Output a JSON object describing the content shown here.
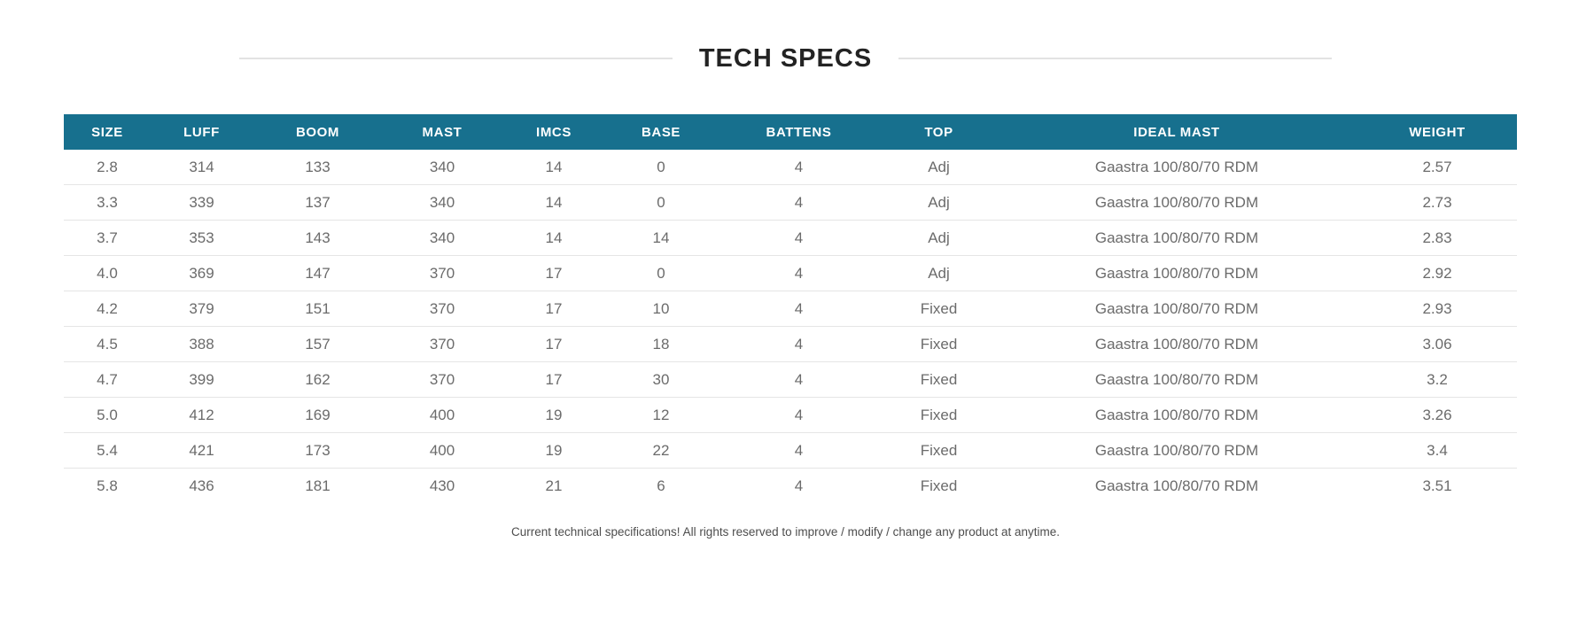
{
  "page": {
    "title": "TECH SPECS",
    "footnote": "Current technical specifications! All rights reserved to improve / modify / change any product at anytime."
  },
  "colors": {
    "header_bg": "#17708e",
    "header_text": "#ffffff",
    "row_text": "#6b6b6b",
    "divider": "#e5e5e5",
    "title_text": "#232323",
    "title_line": "#e3e3e3",
    "footnote_text": "#4d4d4d"
  },
  "table": {
    "columns": [
      "SIZE",
      "LUFF",
      "BOOM",
      "MAST",
      "IMCS",
      "BASE",
      "BATTENS",
      "TOP",
      "IDEAL MAST",
      "WEIGHT"
    ],
    "rows": [
      [
        "2.8",
        "314",
        "133",
        "340",
        "14",
        "0",
        "4",
        "Adj",
        "Gaastra 100/80/70 RDM",
        "2.57"
      ],
      [
        "3.3",
        "339",
        "137",
        "340",
        "14",
        "0",
        "4",
        "Adj",
        "Gaastra 100/80/70 RDM",
        "2.73"
      ],
      [
        "3.7",
        "353",
        "143",
        "340",
        "14",
        "14",
        "4",
        "Adj",
        "Gaastra 100/80/70 RDM",
        "2.83"
      ],
      [
        "4.0",
        "369",
        "147",
        "370",
        "17",
        "0",
        "4",
        "Adj",
        "Gaastra 100/80/70 RDM",
        "2.92"
      ],
      [
        "4.2",
        "379",
        "151",
        "370",
        "17",
        "10",
        "4",
        "Fixed",
        "Gaastra 100/80/70 RDM",
        "2.93"
      ],
      [
        "4.5",
        "388",
        "157",
        "370",
        "17",
        "18",
        "4",
        "Fixed",
        "Gaastra 100/80/70 RDM",
        "3.06"
      ],
      [
        "4.7",
        "399",
        "162",
        "370",
        "17",
        "30",
        "4",
        "Fixed",
        "Gaastra 100/80/70 RDM",
        "3.2"
      ],
      [
        "5.0",
        "412",
        "169",
        "400",
        "19",
        "12",
        "4",
        "Fixed",
        "Gaastra 100/80/70 RDM",
        "3.26"
      ],
      [
        "5.4",
        "421",
        "173",
        "400",
        "19",
        "22",
        "4",
        "Fixed",
        "Gaastra 100/80/70 RDM",
        "3.4"
      ],
      [
        "5.8",
        "436",
        "181",
        "430",
        "21",
        "6",
        "4",
        "Fixed",
        "Gaastra 100/80/70 RDM",
        "3.51"
      ]
    ]
  }
}
